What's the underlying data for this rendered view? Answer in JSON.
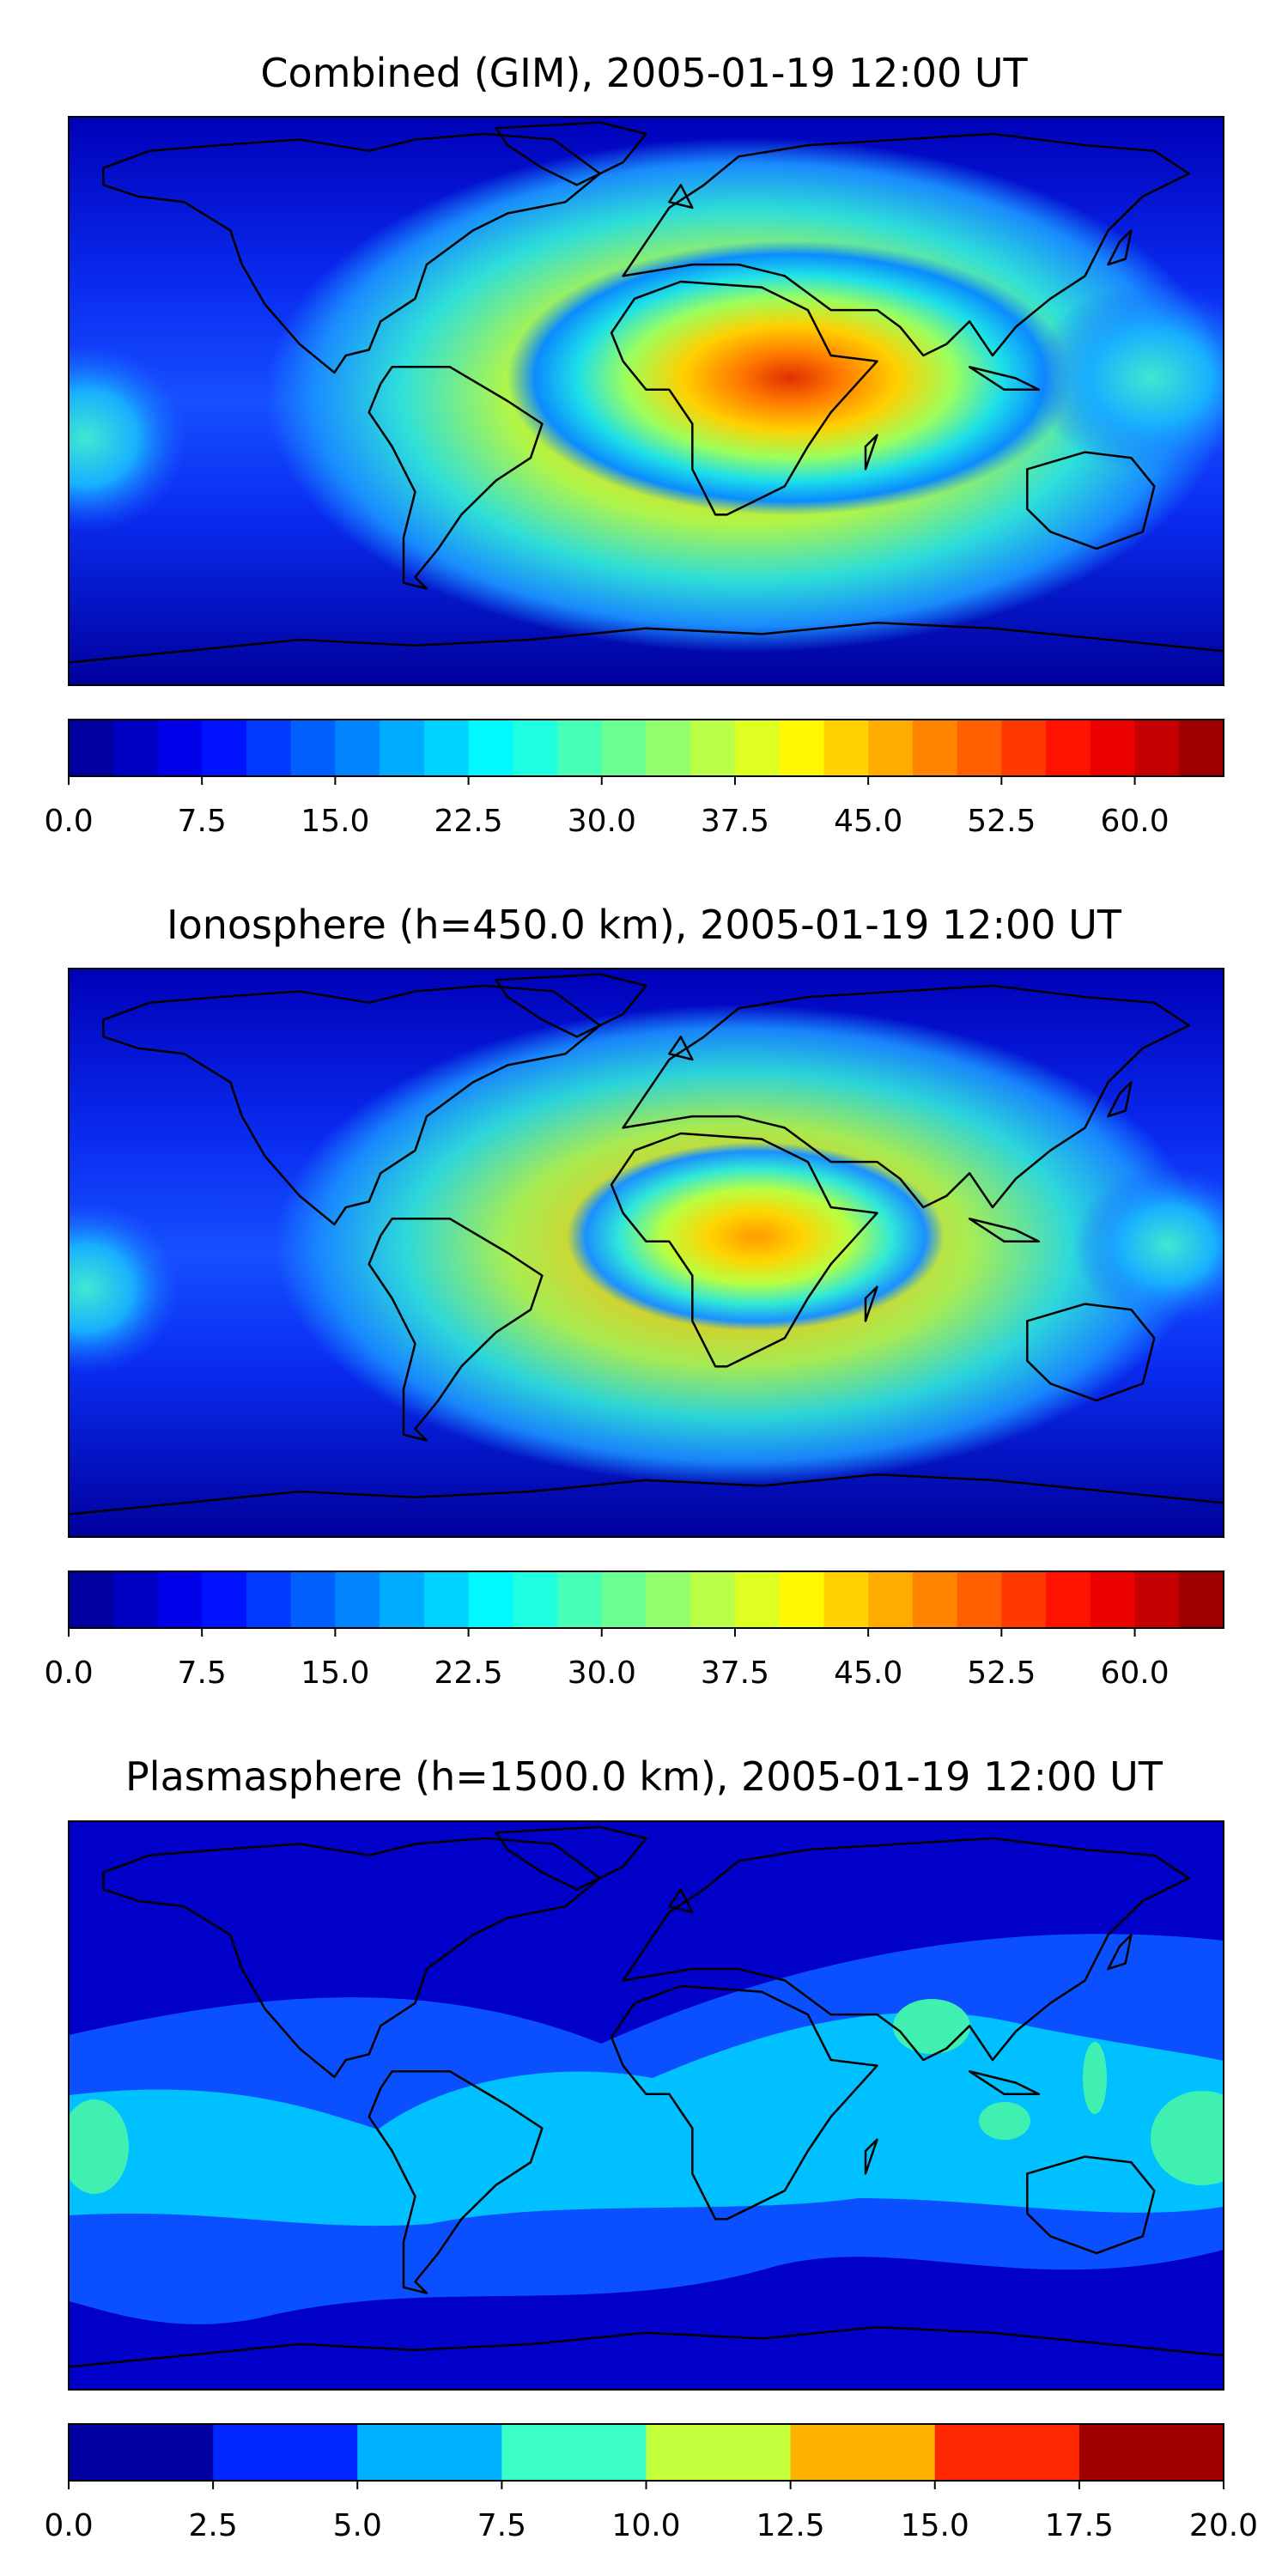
{
  "panels": [
    {
      "title": "Combined (GIM), 2005-01-19 12:00 UT",
      "colorbar": {
        "levels": 26,
        "min": 0.0,
        "max": 65.0,
        "tick_labels": [
          "0.0",
          "7.5",
          "15.0",
          "22.5",
          "30.0",
          "37.5",
          "45.0",
          "52.5",
          "60.0"
        ],
        "tick_values": [
          0.0,
          7.5,
          15.0,
          22.5,
          30.0,
          37.5,
          45.0,
          52.5,
          60.0
        ],
        "colormap": "jet"
      }
    },
    {
      "title": "Ionosphere  (h=450.0 km), 2005-01-19 12:00 UT",
      "colorbar": {
        "levels": 26,
        "min": 0.0,
        "max": 65.0,
        "tick_labels": [
          "0.0",
          "7.5",
          "15.0",
          "22.5",
          "30.0",
          "37.5",
          "45.0",
          "52.5",
          "60.0"
        ],
        "tick_values": [
          0.0,
          7.5,
          15.0,
          22.5,
          30.0,
          37.5,
          45.0,
          52.5,
          60.0
        ],
        "colormap": "jet"
      }
    },
    {
      "title": "Plasmasphere (h=1500.0 km), 2005-01-19 12:00 UT",
      "colorbar": {
        "levels": 8,
        "min": 0.0,
        "max": 20.0,
        "tick_labels": [
          "0.0",
          "2.5",
          "5.0",
          "7.5",
          "10.0",
          "12.5",
          "15.0",
          "17.5",
          "20.0"
        ],
        "tick_values": [
          0.0,
          2.5,
          5.0,
          7.5,
          10.0,
          12.5,
          15.0,
          17.5,
          20.0
        ],
        "colormap": "jet"
      }
    }
  ],
  "colors": {
    "ocean_low": "#00009f",
    "coastline": "#000000",
    "frame": "#000000"
  }
}
